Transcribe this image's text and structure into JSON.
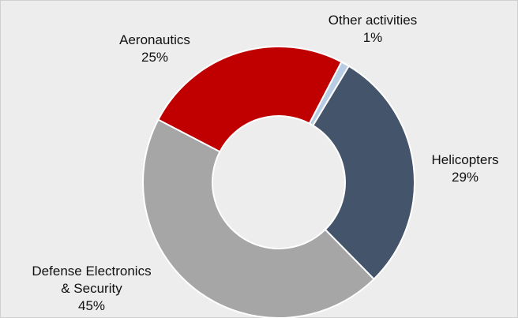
{
  "chart_data": {
    "type": "pie",
    "style": "donut",
    "categories": [
      "Other activities",
      "Helicopters",
      "Defense Electronics & Security",
      "Aeronautics"
    ],
    "values": [
      1,
      29,
      45,
      25
    ],
    "unit": "%",
    "labels": [
      {
        "lines": [
          "Other activities"
        ],
        "value": "1%"
      },
      {
        "lines": [
          "Helicopters"
        ],
        "value": "29%"
      },
      {
        "lines": [
          "Defense Electronics",
          "& Security"
        ],
        "value": "45%"
      },
      {
        "lines": [
          "Aeronautics"
        ],
        "value": "25%"
      }
    ],
    "colors": [
      "#b8cce4",
      "#44546a",
      "#a6a6a6",
      "#c00000"
    ],
    "background": "#ededed",
    "legend": "none",
    "data_labels": "outside"
  }
}
